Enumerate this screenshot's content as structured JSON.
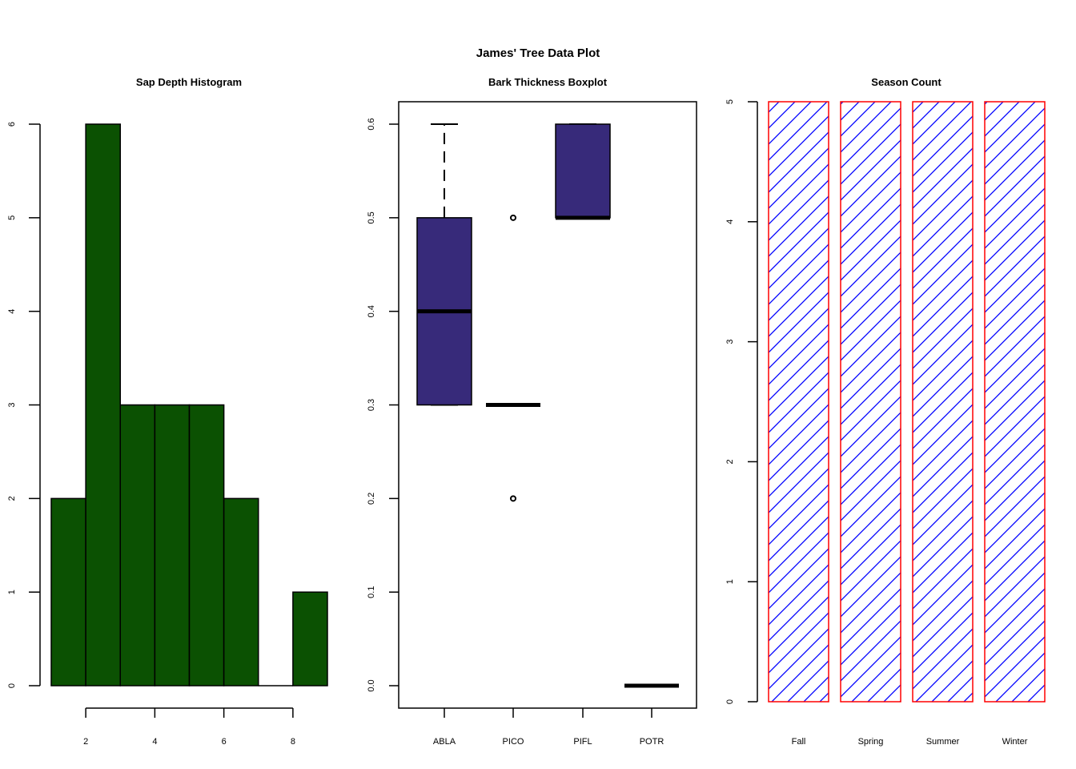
{
  "figure": {
    "title": "James' Tree Data Plot"
  },
  "colors": {
    "hist_fill": "#0b5102",
    "box_fill": "#372a7a",
    "bar_border": "#ff0000",
    "bar_hatch": "#0000ff",
    "axis": "#000000"
  },
  "chart_data": [
    {
      "type": "bar",
      "subtype": "histogram",
      "title": "Sap Depth Histogram",
      "xlabel": "",
      "ylabel": "",
      "bins": [
        [
          1,
          2
        ],
        [
          2,
          3
        ],
        [
          3,
          4
        ],
        [
          4,
          5
        ],
        [
          5,
          6
        ],
        [
          6,
          7
        ],
        [
          7,
          8
        ],
        [
          8,
          9
        ]
      ],
      "values": [
        2,
        6,
        3,
        3,
        3,
        2,
        0,
        1
      ],
      "xlim": [
        1,
        9
      ],
      "ylim": [
        0,
        6
      ],
      "x_ticks": [
        2,
        4,
        6,
        8
      ],
      "y_ticks": [
        0,
        1,
        2,
        3,
        4,
        5,
        6
      ],
      "grid": false
    },
    {
      "type": "box",
      "title": "Bark Thickness Boxplot",
      "xlabel": "",
      "ylabel": "",
      "categories": [
        "ABLA",
        "PICO",
        "PIFL",
        "POTR"
      ],
      "boxes": [
        {
          "min": 0.3,
          "q1": 0.3,
          "median": 0.4,
          "q3": 0.5,
          "max": 0.6,
          "outliers": []
        },
        {
          "min": 0.3,
          "q1": 0.3,
          "median": 0.3,
          "q3": 0.3,
          "max": 0.3,
          "outliers": [
            0.5,
            0.2
          ]
        },
        {
          "min": 0.5,
          "q1": 0.5,
          "median": 0.5,
          "q3": 0.6,
          "max": 0.6,
          "outliers": []
        },
        {
          "min": 0.0,
          "q1": 0.0,
          "median": 0.0,
          "q3": 0.0,
          "max": 0.0,
          "outliers": []
        }
      ],
      "ylim": [
        0,
        0.6
      ],
      "y_ticks": [
        "0.0",
        "0.1",
        "0.2",
        "0.3",
        "0.4",
        "0.5",
        "0.6"
      ],
      "grid": false
    },
    {
      "type": "bar",
      "title": "Season Count",
      "xlabel": "",
      "ylabel": "",
      "categories": [
        "Fall",
        "Spring",
        "Summer",
        "Winter"
      ],
      "values": [
        5,
        5,
        5,
        5
      ],
      "ylim": [
        0,
        5
      ],
      "y_ticks": [
        0,
        1,
        2,
        3,
        4,
        5
      ],
      "fill": "hatched",
      "grid": false
    }
  ]
}
